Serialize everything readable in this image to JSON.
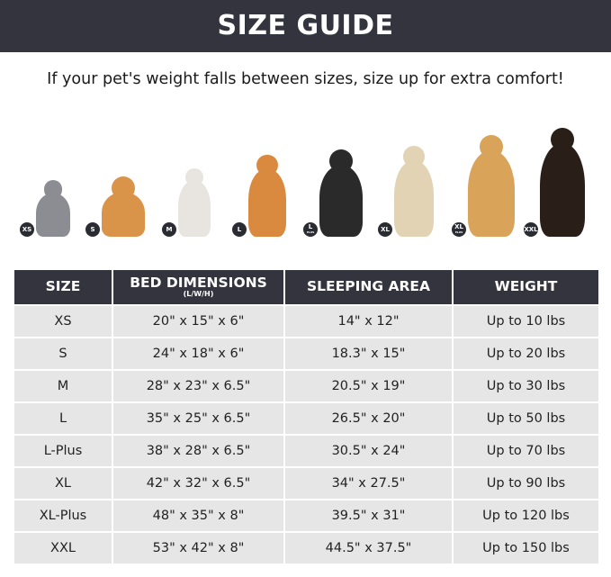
{
  "title": "SIZE GUIDE",
  "subtitle": "If your pet's weight falls between sizes, size up for extra comfort!",
  "pets": [
    {
      "badge": "XS",
      "color": "#8c8c93"
    },
    {
      "badge": "S",
      "color": "#d9944a"
    },
    {
      "badge": "M",
      "color": "#e8e4df"
    },
    {
      "badge": "L",
      "color": "#d98a3f"
    },
    {
      "badge": "L",
      "badge_sub": "PLUS",
      "color": "#2a2a2a"
    },
    {
      "badge": "XL",
      "color": "#e3d3b5"
    },
    {
      "badge": "XL",
      "badge_sub": "PLUS",
      "color": "#d9a35a"
    },
    {
      "badge": "XXL",
      "color": "#2a1e18"
    }
  ],
  "table": {
    "headers": [
      "SIZE",
      "BED DIMENSIONS",
      "SLEEPING AREA",
      "WEIGHT"
    ],
    "header_note": "(L/W/H)",
    "rows": [
      [
        "XS",
        "20\" x 15\" x 6\"",
        "14\" x 12\"",
        "Up to 10 lbs"
      ],
      [
        "S",
        "24\" x 18\" x 6\"",
        "18.3\" x 15\"",
        "Up to 20 lbs"
      ],
      [
        "M",
        "28\" x 23\" x 6.5\"",
        "20.5\" x 19\"",
        "Up to 30 lbs"
      ],
      [
        "L",
        "35\" x 25\" x 6.5\"",
        "26.5\" x 20\"",
        "Up to 50 lbs"
      ],
      [
        "L-Plus",
        "38\" x 28\" x 6.5\"",
        "30.5\" x 24\"",
        "Up to 70 lbs"
      ],
      [
        "XL",
        "42\" x 32\" x 6.5\"",
        "34\" x 27.5\"",
        "Up to 90 lbs"
      ],
      [
        "XL-Plus",
        "48\" x 35\" x 8\"",
        "39.5\" x 31\"",
        "Up to 120 lbs"
      ],
      [
        "XXL",
        "53\" x 42\" x 8\"",
        "44.5\" x 37.5\"",
        "Up to 150 lbs"
      ]
    ]
  }
}
